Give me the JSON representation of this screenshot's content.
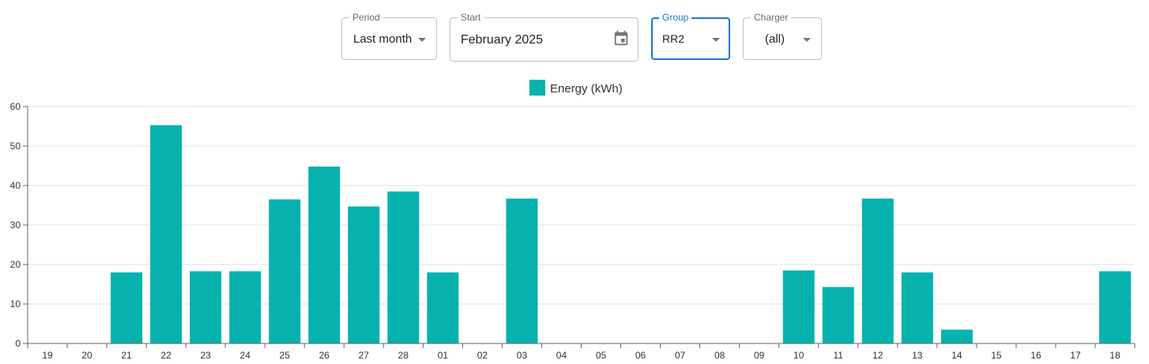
{
  "filters": {
    "period": {
      "label": "Period",
      "value": "Last month"
    },
    "start": {
      "label": "Start",
      "value": "February 2025"
    },
    "group": {
      "label": "Group",
      "value": "RR2"
    },
    "charger": {
      "label": "Charger",
      "value": "(all)"
    }
  },
  "colors": {
    "bar": "#05b2ae",
    "accent": "#1976d2"
  },
  "chart_data": {
    "type": "bar",
    "legend": "Energy (kWh)",
    "legend_position": "top-center",
    "grid": true,
    "ylim": [
      0,
      60
    ],
    "yticks": [
      0,
      10,
      20,
      30,
      40,
      50,
      60
    ],
    "categories": [
      "19",
      "20",
      "21",
      "22",
      "23",
      "24",
      "25",
      "26",
      "27",
      "28",
      "01",
      "02",
      "03",
      "04",
      "05",
      "06",
      "07",
      "08",
      "09",
      "10",
      "11",
      "12",
      "13",
      "14",
      "15",
      "16",
      "17",
      "18"
    ],
    "values": [
      0,
      0,
      18,
      55.3,
      18.3,
      18.3,
      36.5,
      44.8,
      34.7,
      38.5,
      18,
      0,
      36.7,
      0,
      0,
      0,
      0,
      0,
      0,
      18.5,
      14.3,
      36.7,
      18,
      3.5,
      0,
      0,
      0,
      18.3
    ]
  }
}
